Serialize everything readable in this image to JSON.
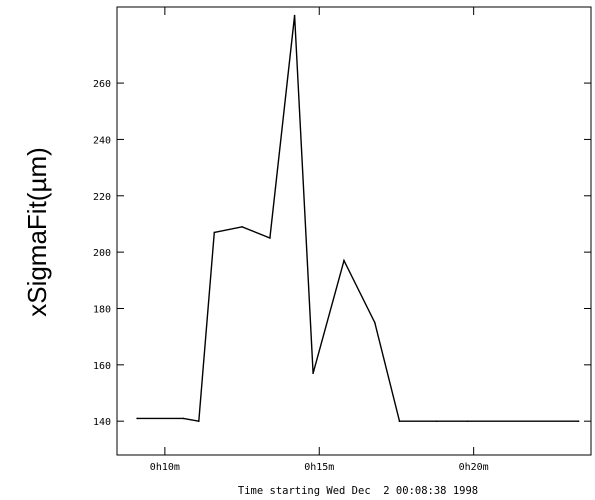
{
  "chart_data": {
    "type": "line",
    "title": "",
    "xlabel": "Time starting Wed Dec  2 00:08:38 1998",
    "ylabel": "xSigmaFit(µm)",
    "x_unit": "minutes",
    "xlim": [
      8.45,
      23.8
    ],
    "ylim": [
      128,
      287
    ],
    "x_ticks": [
      {
        "value": 10,
        "label": "0h10m"
      },
      {
        "value": 15,
        "label": "0h15m"
      },
      {
        "value": 20,
        "label": "0h20m"
      }
    ],
    "y_ticks": [
      {
        "value": 140,
        "label": "140"
      },
      {
        "value": 160,
        "label": "160"
      },
      {
        "value": 180,
        "label": "180"
      },
      {
        "value": 200,
        "label": "200"
      },
      {
        "value": 220,
        "label": "220"
      },
      {
        "value": 240,
        "label": "240"
      },
      {
        "value": 260,
        "label": "260"
      }
    ],
    "grid": false,
    "series": [
      {
        "color": "#000000",
        "x": [
          9.1,
          10.6,
          11.1,
          11.6,
          12.5,
          13.4,
          14.2,
          14.8,
          15.8,
          16.8,
          17.6,
          18.8,
          19.8,
          23.4
        ],
        "y": [
          141,
          141,
          140,
          207,
          209,
          205,
          284,
          157,
          197,
          175,
          140,
          140,
          140,
          140
        ]
      }
    ]
  }
}
